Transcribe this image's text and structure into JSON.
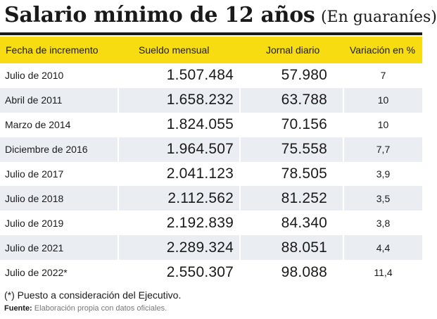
{
  "header": {
    "title": "Salario mínimo de 12 años",
    "subtitle": "(En guaraníes)"
  },
  "chart_data": {
    "type": "table",
    "title": "Salario mínimo de 12 años (En guaraníes)",
    "columns": [
      "Fecha de incremento",
      "Sueldo mensual",
      "Jornal diario",
      "Variación en %"
    ],
    "rows": [
      [
        "Julio de 2010",
        "1.507.484",
        "57.980",
        "7"
      ],
      [
        "Abril de 2011",
        "1.658.232",
        "63.788",
        "10"
      ],
      [
        "Marzo de 2014",
        "1.824.055",
        "70.156",
        "10"
      ],
      [
        "Diciembre de 2016",
        "1.964.507",
        "75.558",
        "7,7"
      ],
      [
        "Julio de 2017",
        "2.041.123",
        "78.505",
        "3,9"
      ],
      [
        "Julio de 2018",
        "2.112.562",
        "81.252",
        "3,5"
      ],
      [
        "Julio de 2019",
        "2.192.839",
        "84.340",
        "3,8"
      ],
      [
        "Julio de 2021",
        "2.289.324",
        "88.051",
        "4,4"
      ],
      [
        "Julio de 2022*",
        "2.550.307",
        "98.088",
        "11,4"
      ]
    ]
  },
  "footer": {
    "note": "(*) Puesto a consideración del Ejecutivo.",
    "source_label": "Fuente:",
    "source_text": "Elaboración propia con datos oficiales."
  },
  "colors": {
    "header_bg": "#f6dc10",
    "stripe_bg": "#eaeef2"
  }
}
